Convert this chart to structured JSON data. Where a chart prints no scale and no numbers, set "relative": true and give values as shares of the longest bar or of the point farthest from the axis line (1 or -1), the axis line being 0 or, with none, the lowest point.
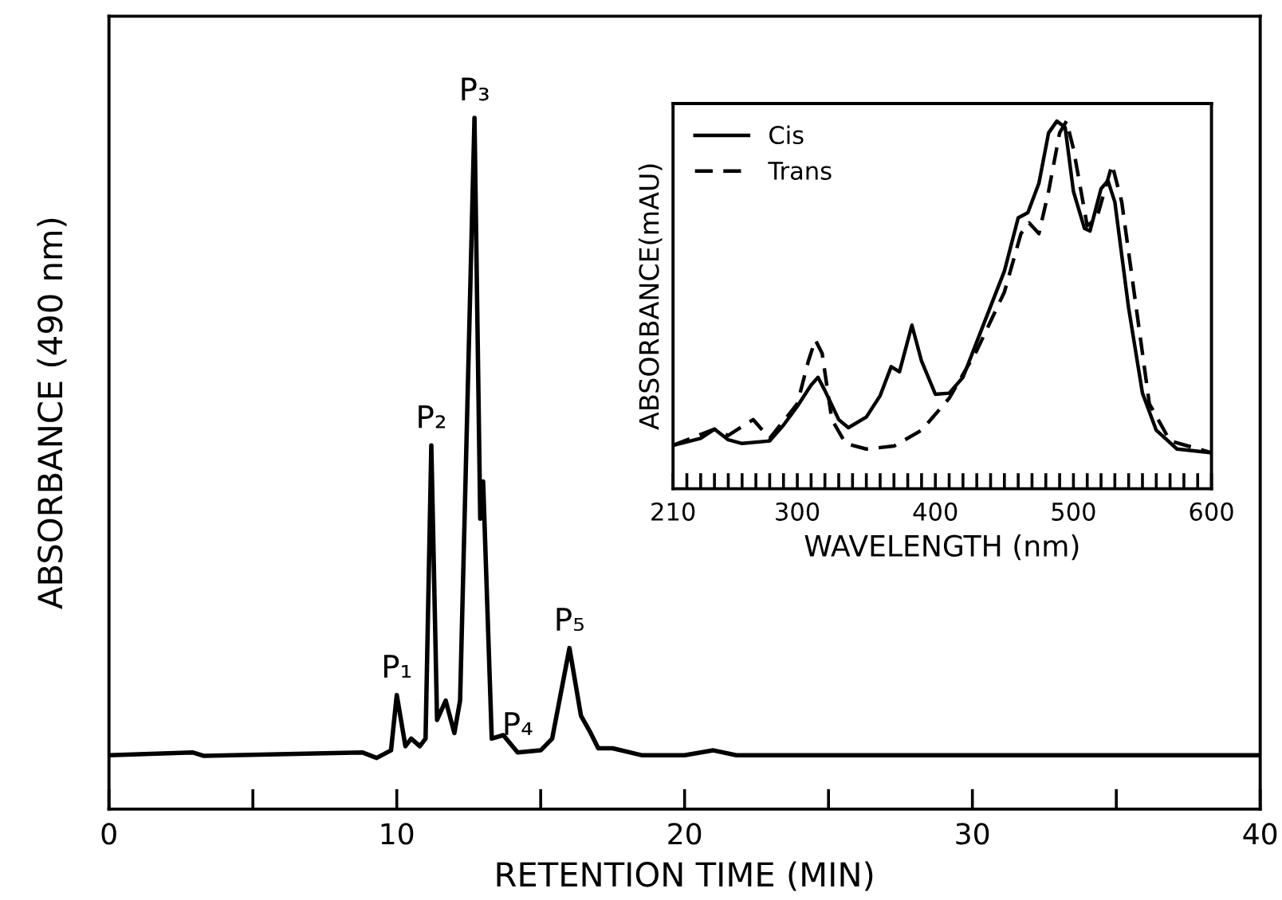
{
  "chart_data": [
    {
      "type": "line",
      "relative": true,
      "xlabel": "RETENTION TIME (MIN)",
      "ylabel": "ABSORBANCE (490 nm)",
      "xlim": [
        0,
        40
      ],
      "xticks": [
        0,
        {
          "value": 5,
          "label": null
        },
        10,
        {
          "value": 15,
          "label": null
        },
        20,
        {
          "value": 25,
          "label": null
        },
        30,
        {
          "value": 35,
          "label": null
        },
        40
      ],
      "tick_labels": "x",
      "grid": false,
      "legend": false,
      "series": [
        {
          "color": "#000000",
          "line_style": "solid",
          "x": [
            0,
            2.9,
            3.3,
            8.8,
            9.3,
            9.8,
            10.0,
            10.3,
            10.5,
            10.8,
            11.0,
            11.2,
            11.4,
            11.7,
            12.0,
            12.2,
            12.7,
            12.9,
            13.0,
            13.3,
            13.7,
            14.2,
            15.0,
            15.4,
            16.0,
            16.4,
            16.7,
            17.0,
            17.5,
            18.5,
            20.0,
            21.0,
            21.8,
            40
          ],
          "values": [
            0.078,
            0.082,
            0.077,
            0.082,
            0.074,
            0.085,
            0.165,
            0.091,
            0.102,
            0.091,
            0.102,
            0.526,
            0.129,
            0.157,
            0.11,
            0.157,
            1.0,
            0.42,
            0.474,
            0.102,
            0.107,
            0.082,
            0.085,
            0.102,
            0.233,
            0.135,
            0.113,
            0.088,
            0.088,
            0.078,
            0.078,
            0.085,
            0.078,
            0.078
          ]
        }
      ],
      "annotations": [
        {
          "text": "P₁",
          "x": 10.0,
          "y": 0.165
        },
        {
          "text": "P₂",
          "x": 11.2,
          "y": 0.526
        },
        {
          "text": "P₃",
          "x": 12.7,
          "y": 1.0
        },
        {
          "text": "P₄",
          "x": 14.2,
          "y": 0.082
        },
        {
          "text": "P₅",
          "x": 16.0,
          "y": 0.233
        }
      ]
    },
    {
      "type": "line",
      "relative": true,
      "xlabel": "WAVELENGTH (nm)",
      "ylabel": "ABSORBANCE(mAU)",
      "xlim": [
        210,
        600
      ],
      "xticks": [
        210,
        {
          "value": 220,
          "label": null
        },
        {
          "value": 230,
          "label": null
        },
        {
          "value": 240,
          "label": null
        },
        {
          "value": 250,
          "label": null
        },
        {
          "value": 260,
          "label": null
        },
        {
          "value": 270,
          "label": null
        },
        {
          "value": 280,
          "label": null
        },
        {
          "value": 290,
          "label": null
        },
        300,
        {
          "value": 310,
          "label": null
        },
        {
          "value": 320,
          "label": null
        },
        {
          "value": 330,
          "label": null
        },
        {
          "value": 340,
          "label": null
        },
        {
          "value": 350,
          "label": null
        },
        {
          "value": 360,
          "label": null
        },
        {
          "value": 370,
          "label": null
        },
        {
          "value": 380,
          "label": null
        },
        {
          "value": 390,
          "label": null
        },
        400,
        {
          "value": 410,
          "label": null
        },
        {
          "value": 420,
          "label": null
        },
        {
          "value": 430,
          "label": null
        },
        {
          "value": 440,
          "label": null
        },
        {
          "value": 450,
          "label": null
        },
        {
          "value": 460,
          "label": null
        },
        {
          "value": 470,
          "label": null
        },
        {
          "value": 480,
          "label": null
        },
        {
          "value": 490,
          "label": null
        },
        500,
        {
          "value": 510,
          "label": null
        },
        {
          "value": 520,
          "label": null
        },
        {
          "value": 530,
          "label": null
        },
        {
          "value": 540,
          "label": null
        },
        {
          "value": 550,
          "label": null
        },
        {
          "value": 560,
          "label": null
        },
        {
          "value": 570,
          "label": null
        },
        {
          "value": 580,
          "label": null
        },
        {
          "value": 590,
          "label": null
        },
        600
      ],
      "tick_labels": "x",
      "grid": false,
      "legend": "top left",
      "series": [
        {
          "name": "Cis",
          "color": "#000000",
          "line_style": "solid",
          "x": [
            210,
            230,
            240,
            250,
            260,
            280,
            290,
            300,
            310,
            315,
            320,
            330,
            337,
            350,
            360,
            368,
            374,
            383,
            390,
            400,
            410,
            420,
            435,
            450,
            460,
            467,
            475,
            482,
            488,
            494,
            500,
            508,
            512,
            520,
            525,
            530,
            540,
            550,
            560,
            575,
            600
          ],
          "values": [
            0.118,
            0.137,
            0.162,
            0.133,
            0.123,
            0.13,
            0.173,
            0.224,
            0.282,
            0.303,
            0.267,
            0.188,
            0.166,
            0.195,
            0.253,
            0.332,
            0.318,
            0.445,
            0.347,
            0.257,
            0.26,
            0.303,
            0.448,
            0.592,
            0.737,
            0.751,
            0.831,
            0.968,
            1.0,
            0.983,
            0.809,
            0.708,
            0.701,
            0.816,
            0.838,
            0.78,
            0.491,
            0.26,
            0.159,
            0.108,
            0.098
          ]
        },
        {
          "name": "Trans",
          "color": "#000000",
          "line_style": "dashed",
          "x": [
            210,
            240,
            250,
            268,
            280,
            300,
            308,
            313,
            318,
            325,
            335,
            350,
            370,
            390,
            410,
            430,
            450,
            462,
            468,
            475,
            482,
            490,
            495,
            500,
            510,
            517,
            528,
            535,
            545,
            555,
            570,
            600
          ],
          "values": [
            0.118,
            0.162,
            0.145,
            0.188,
            0.137,
            0.231,
            0.347,
            0.405,
            0.368,
            0.188,
            0.123,
            0.108,
            0.116,
            0.159,
            0.246,
            0.376,
            0.535,
            0.694,
            0.723,
            0.694,
            0.809,
            0.968,
            1.0,
            0.925,
            0.715,
            0.737,
            0.882,
            0.78,
            0.506,
            0.231,
            0.13,
            0.098
          ]
        }
      ]
    }
  ]
}
